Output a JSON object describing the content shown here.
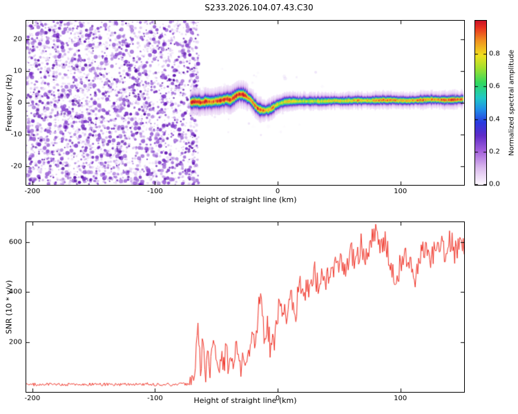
{
  "figure": {
    "title": "S233.2026.104.07.43.C30"
  },
  "colors": {
    "axis": "#000000",
    "snr_line": "#f03024",
    "background": "#ffffff",
    "noise_light": [
      "#e7d7f6",
      "#d4b8ef",
      "#c09ae6"
    ],
    "noise_medium": [
      "#a06ad8",
      "#8a4ad0",
      "#7a34c8"
    ],
    "noise_dark": [
      "#6a20b8",
      "#5a14a8"
    ]
  },
  "chart_data": [
    {
      "type": "heatmap",
      "panel": "spectrogram",
      "xlabel": "Height of straight line (km)",
      "ylabel": "Frequency (Hz)",
      "xlim": [
        -205,
        152
      ],
      "ylim": [
        -26,
        26
      ],
      "xticks": [
        -200,
        -100,
        0,
        100
      ],
      "yticks": [
        -20,
        -10,
        0,
        10,
        20
      ],
      "grid": false,
      "noise_region": {
        "x_start": -205,
        "x_end": -64.5,
        "fills_full_frequency_range": true
      },
      "trace": {
        "description": "narrow echo trace near 0 Hz starting at ~-71 km",
        "x": [
          -71,
          -66,
          -62,
          -58,
          -54,
          -50,
          -46,
          -42,
          -38,
          -34,
          -31,
          -28,
          -25,
          -22,
          -19,
          -16,
          -13,
          -10,
          -7,
          -4,
          -1,
          3,
          8,
          15,
          25,
          35,
          45,
          55,
          65,
          75,
          85,
          95,
          105,
          115,
          125,
          135,
          145,
          151
        ],
        "center_freq": [
          0.2,
          0.4,
          0.1,
          0.5,
          0.3,
          0.6,
          0.8,
          1.2,
          1.0,
          2.2,
          2.8,
          2.6,
          2.0,
          1.0,
          -0.5,
          -1.8,
          -2.3,
          -2.4,
          -2.2,
          -1.6,
          -0.8,
          0.0,
          0.4,
          0.5,
          0.6,
          0.5,
          0.7,
          0.6,
          0.8,
          0.7,
          0.9,
          0.8,
          0.7,
          0.9,
          1.1,
          0.9,
          1.0,
          1.1
        ],
        "amplitude": [
          0.9,
          0.95,
          0.85,
          0.9,
          0.8,
          0.9,
          0.95,
          0.9,
          0.85,
          0.95,
          0.9,
          0.95,
          0.85,
          0.8,
          0.85,
          0.9,
          0.85,
          0.8,
          0.75,
          0.8,
          0.7,
          0.65,
          0.75,
          0.7,
          0.65,
          0.7,
          0.75,
          0.7,
          0.8,
          0.75,
          0.85,
          0.8,
          0.75,
          0.85,
          0.8,
          0.85,
          0.9,
          0.85
        ],
        "sigma_x": [
          -71,
          -40,
          -20,
          0,
          40,
          151
        ],
        "sigma": [
          1.0,
          1.1,
          1.0,
          0.8,
          0.7,
          0.7
        ]
      },
      "colorbar": {
        "label": "Normalized spectral amplitude",
        "min": 0,
        "max": 1,
        "ticks": [
          0.0,
          0.2,
          0.4,
          0.6,
          0.8
        ],
        "stops": [
          [
            0.0,
            "#fdf8ff"
          ],
          [
            0.1,
            "#dcbcee"
          ],
          [
            0.2,
            "#a764dd"
          ],
          [
            0.3,
            "#5f2cc8"
          ],
          [
            0.38,
            "#2a3ae0"
          ],
          [
            0.46,
            "#2090e8"
          ],
          [
            0.53,
            "#20c8c8"
          ],
          [
            0.62,
            "#30d860"
          ],
          [
            0.71,
            "#a0e030"
          ],
          [
            0.79,
            "#f0e020"
          ],
          [
            0.88,
            "#f09020"
          ],
          [
            0.96,
            "#e83020"
          ],
          [
            1.0,
            "#cc1428"
          ]
        ]
      }
    },
    {
      "type": "line",
      "panel": "snr",
      "xlabel": "Height of straight line (km)",
      "ylabel": "SNR (10 * v/v)",
      "xlim": [
        -205,
        152
      ],
      "ylim": [
        0,
        680
      ],
      "xticks": [
        -200,
        -100,
        0,
        100
      ],
      "yticks": [
        200,
        400,
        600
      ],
      "grid": false,
      "legend": "none",
      "series": [
        {
          "name": "SNR",
          "color": "#f03024",
          "anchors_x": [
            -205,
            -150,
            -80,
            -70,
            -67,
            -65,
            -63,
            -61,
            -59,
            -57,
            -55,
            -52,
            -50,
            -48,
            -46,
            -44,
            -42,
            -40,
            -38,
            -36,
            -34,
            -32,
            -30,
            -28,
            -26,
            -24,
            -22,
            -20,
            -18,
            -16,
            -14,
            -12,
            -10,
            -8,
            -6,
            -4,
            -2,
            0,
            2,
            4,
            6,
            8,
            10,
            12,
            14,
            16,
            18,
            20,
            22,
            24,
            26,
            28,
            30,
            33,
            36,
            40,
            44,
            48,
            52,
            56,
            60,
            64,
            68,
            72,
            76,
            80,
            84,
            88,
            92,
            96,
            100,
            104,
            108,
            112,
            116,
            120,
            124,
            128,
            132,
            136,
            140,
            144,
            148,
            151
          ],
          "anchors_y": [
            30,
            30,
            30,
            32,
            120,
            280,
            90,
            200,
            60,
            160,
            90,
            200,
            120,
            70,
            150,
            100,
            180,
            90,
            150,
            120,
            200,
            140,
            90,
            160,
            120,
            200,
            150,
            250,
            180,
            320,
            430,
            280,
            200,
            260,
            180,
            240,
            200,
            300,
            380,
            300,
            360,
            280,
            400,
            340,
            260,
            380,
            420,
            350,
            430,
            380,
            450,
            400,
            470,
            430,
            490,
            450,
            520,
            470,
            540,
            490,
            560,
            520,
            590,
            540,
            610,
            650,
            560,
            600,
            520,
            420,
            480,
            560,
            520,
            450,
            540,
            580,
            520,
            560,
            600,
            550,
            600,
            560,
            590,
            570
          ],
          "noise_segments": [
            {
              "until": -72,
              "amp": 6
            },
            {
              "until": -20,
              "amp": 45
            },
            {
              "until": 0,
              "amp": 55
            },
            {
              "until": 40,
              "amp": 55
            },
            {
              "until": 999,
              "amp": 48
            }
          ]
        }
      ]
    }
  ]
}
